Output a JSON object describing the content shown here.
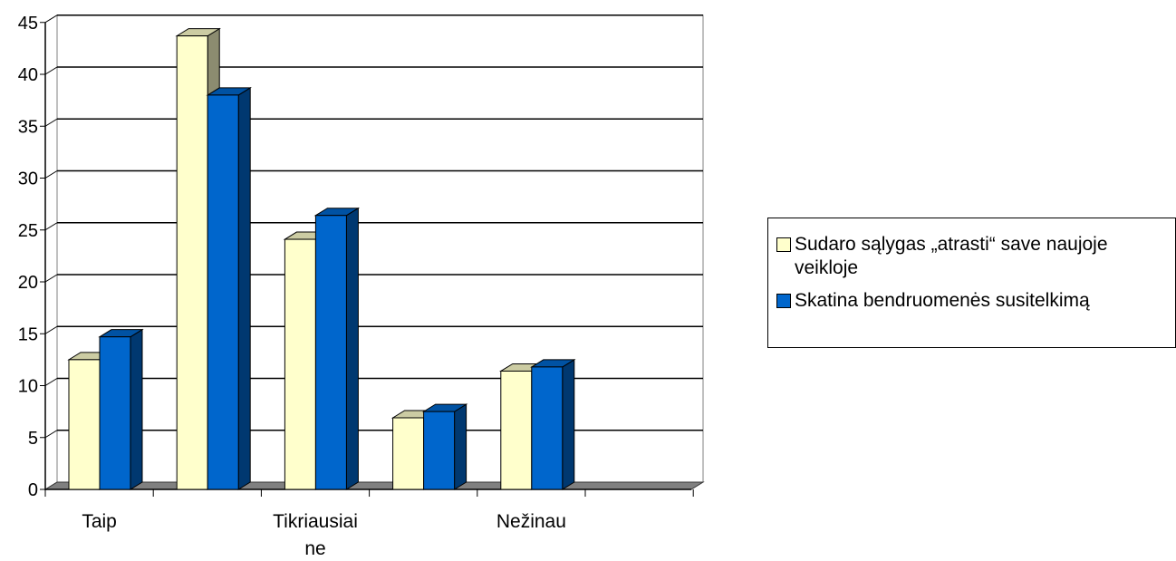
{
  "chart_data": {
    "type": "bar",
    "categories": [
      "Taip",
      "",
      "Tikriausiai ne",
      "",
      "Nežinau"
    ],
    "series": [
      {
        "name": "Sudaro sąlygas „atrasti“ save naujoje veikloje",
        "color": "#FFFFCC",
        "values": [
          12.5,
          43.7,
          24.1,
          6.9,
          11.4
        ]
      },
      {
        "name": "Skatina bendruomenės susitelkimą",
        "color": "#0066CC",
        "values": [
          14.7,
          38.0,
          26.4,
          7.5,
          11.8
        ]
      }
    ],
    "yticks": [
      "0",
      "5",
      "10",
      "15",
      "20",
      "25",
      "30",
      "35",
      "40",
      "45"
    ],
    "ylim": [
      0,
      45
    ],
    "grid": true,
    "legend_position": "right"
  }
}
